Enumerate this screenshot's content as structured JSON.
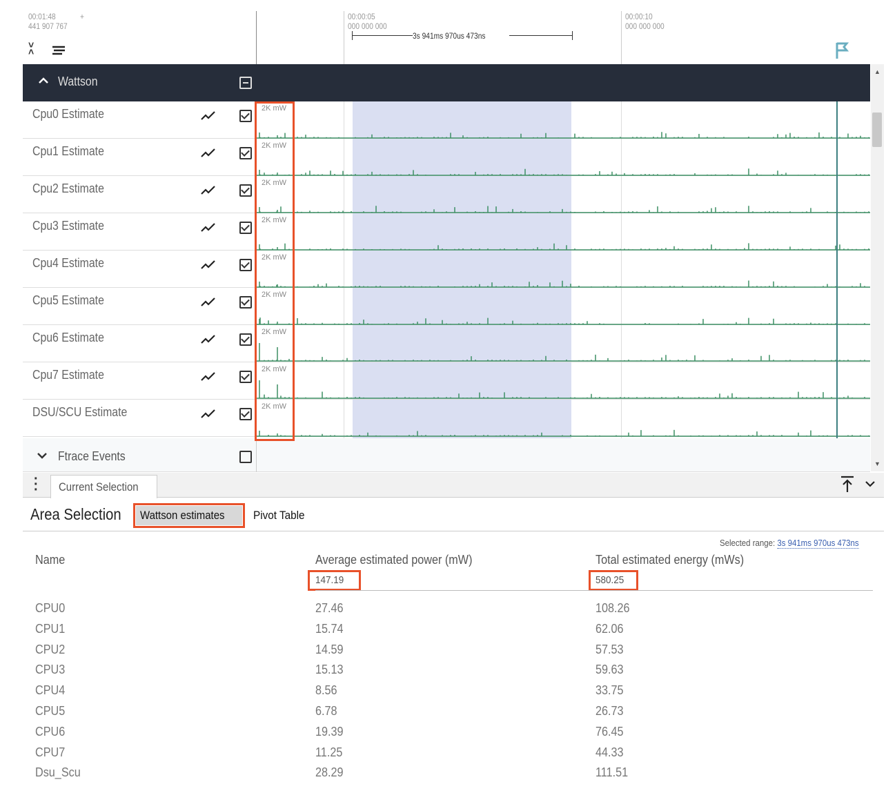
{
  "timeline": {
    "offset_time": "00:01:48",
    "offset_ns": "441 907 767",
    "offset_plus": "+",
    "ticks": [
      {
        "time": "00:00:05",
        "ns": "000 000 000"
      },
      {
        "time": "00:00:10",
        "ns": "000 000 000"
      }
    ],
    "selection_duration": "3s 941ms 970us 473ns"
  },
  "group": {
    "title": "Wattson",
    "expanded": true
  },
  "tracks": [
    {
      "label": "Cpu0 Estimate",
      "scale": "2K mW",
      "checked": true
    },
    {
      "label": "Cpu1 Estimate",
      "scale": "2K mW",
      "checked": true
    },
    {
      "label": "Cpu2 Estimate",
      "scale": "2K mW",
      "checked": true
    },
    {
      "label": "Cpu3 Estimate",
      "scale": "2K mW",
      "checked": true
    },
    {
      "label": "Cpu4 Estimate",
      "scale": "2K mW",
      "checked": true
    },
    {
      "label": "Cpu5 Estimate",
      "scale": "2K mW",
      "checked": true
    },
    {
      "label": "Cpu6 Estimate",
      "scale": "2K mW",
      "checked": true
    },
    {
      "label": "Cpu7 Estimate",
      "scale": "2K mW",
      "checked": true
    },
    {
      "label": "DSU/SCU Estimate",
      "scale": "2K mW",
      "checked": true
    }
  ],
  "ftrace": {
    "title": "Ftrace Events",
    "checked": false
  },
  "bottom": {
    "tab": "Current Selection",
    "title": "Area Selection",
    "tabs": [
      "Wattson estimates",
      "Pivot Table"
    ],
    "selected_range_label": "Selected range:",
    "selected_range": "3s 941ms 970us 473ns",
    "columns": [
      "Name",
      "Average estimated power (mW)",
      "Total estimated energy (mWs)"
    ],
    "totals": {
      "power": "147.19",
      "energy": "580.25"
    },
    "rows": [
      [
        "CPU0",
        "27.46",
        "108.26"
      ],
      [
        "CPU1",
        "15.74",
        "62.06"
      ],
      [
        "CPU2",
        "14.59",
        "57.53"
      ],
      [
        "CPU3",
        "15.13",
        "59.63"
      ],
      [
        "CPU4",
        "8.56",
        "33.75"
      ],
      [
        "CPU5",
        "6.78",
        "26.73"
      ],
      [
        "CPU6",
        "19.39",
        "76.45"
      ],
      [
        "CPU7",
        "11.25",
        "44.33"
      ],
      [
        "Dsu_Scu",
        "28.29",
        "111.51"
      ]
    ]
  },
  "colors": {
    "header": "#262d3a",
    "selection": "#dadff2",
    "trace": "#3d8f64",
    "highlight": "#e8512a",
    "flag": "#6aaec0"
  }
}
